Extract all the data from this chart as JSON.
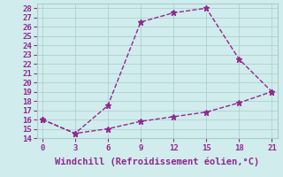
{
  "line1_x": [
    0,
    3,
    6,
    9,
    12,
    15,
    18,
    21
  ],
  "line1_y": [
    16,
    14.5,
    17.5,
    26.5,
    27.5,
    28,
    22.5,
    19
  ],
  "line2_x": [
    0,
    3,
    6,
    9,
    12,
    15,
    18,
    21
  ],
  "line2_y": [
    16,
    14.5,
    15.0,
    15.8,
    16.3,
    16.8,
    17.8,
    19.0
  ],
  "line_color": "#912891",
  "bg_color": "#d0ecec",
  "plot_bg_color": "#d0ecec",
  "xlabel": "Windchill (Refroidissement éolien,°C)",
  "xlim": [
    -0.5,
    21.5
  ],
  "ylim": [
    14,
    28.5
  ],
  "xticks": [
    0,
    3,
    6,
    9,
    12,
    15,
    18,
    21
  ],
  "yticks": [
    14,
    15,
    16,
    17,
    18,
    19,
    20,
    21,
    22,
    23,
    24,
    25,
    26,
    27,
    28
  ],
  "grid_color": "#a8cccc",
  "marker": "*",
  "marker_size": 5,
  "line_width": 1.0,
  "font_color": "#912891",
  "tick_fontsize": 6.5,
  "xlabel_fontsize": 7.5
}
